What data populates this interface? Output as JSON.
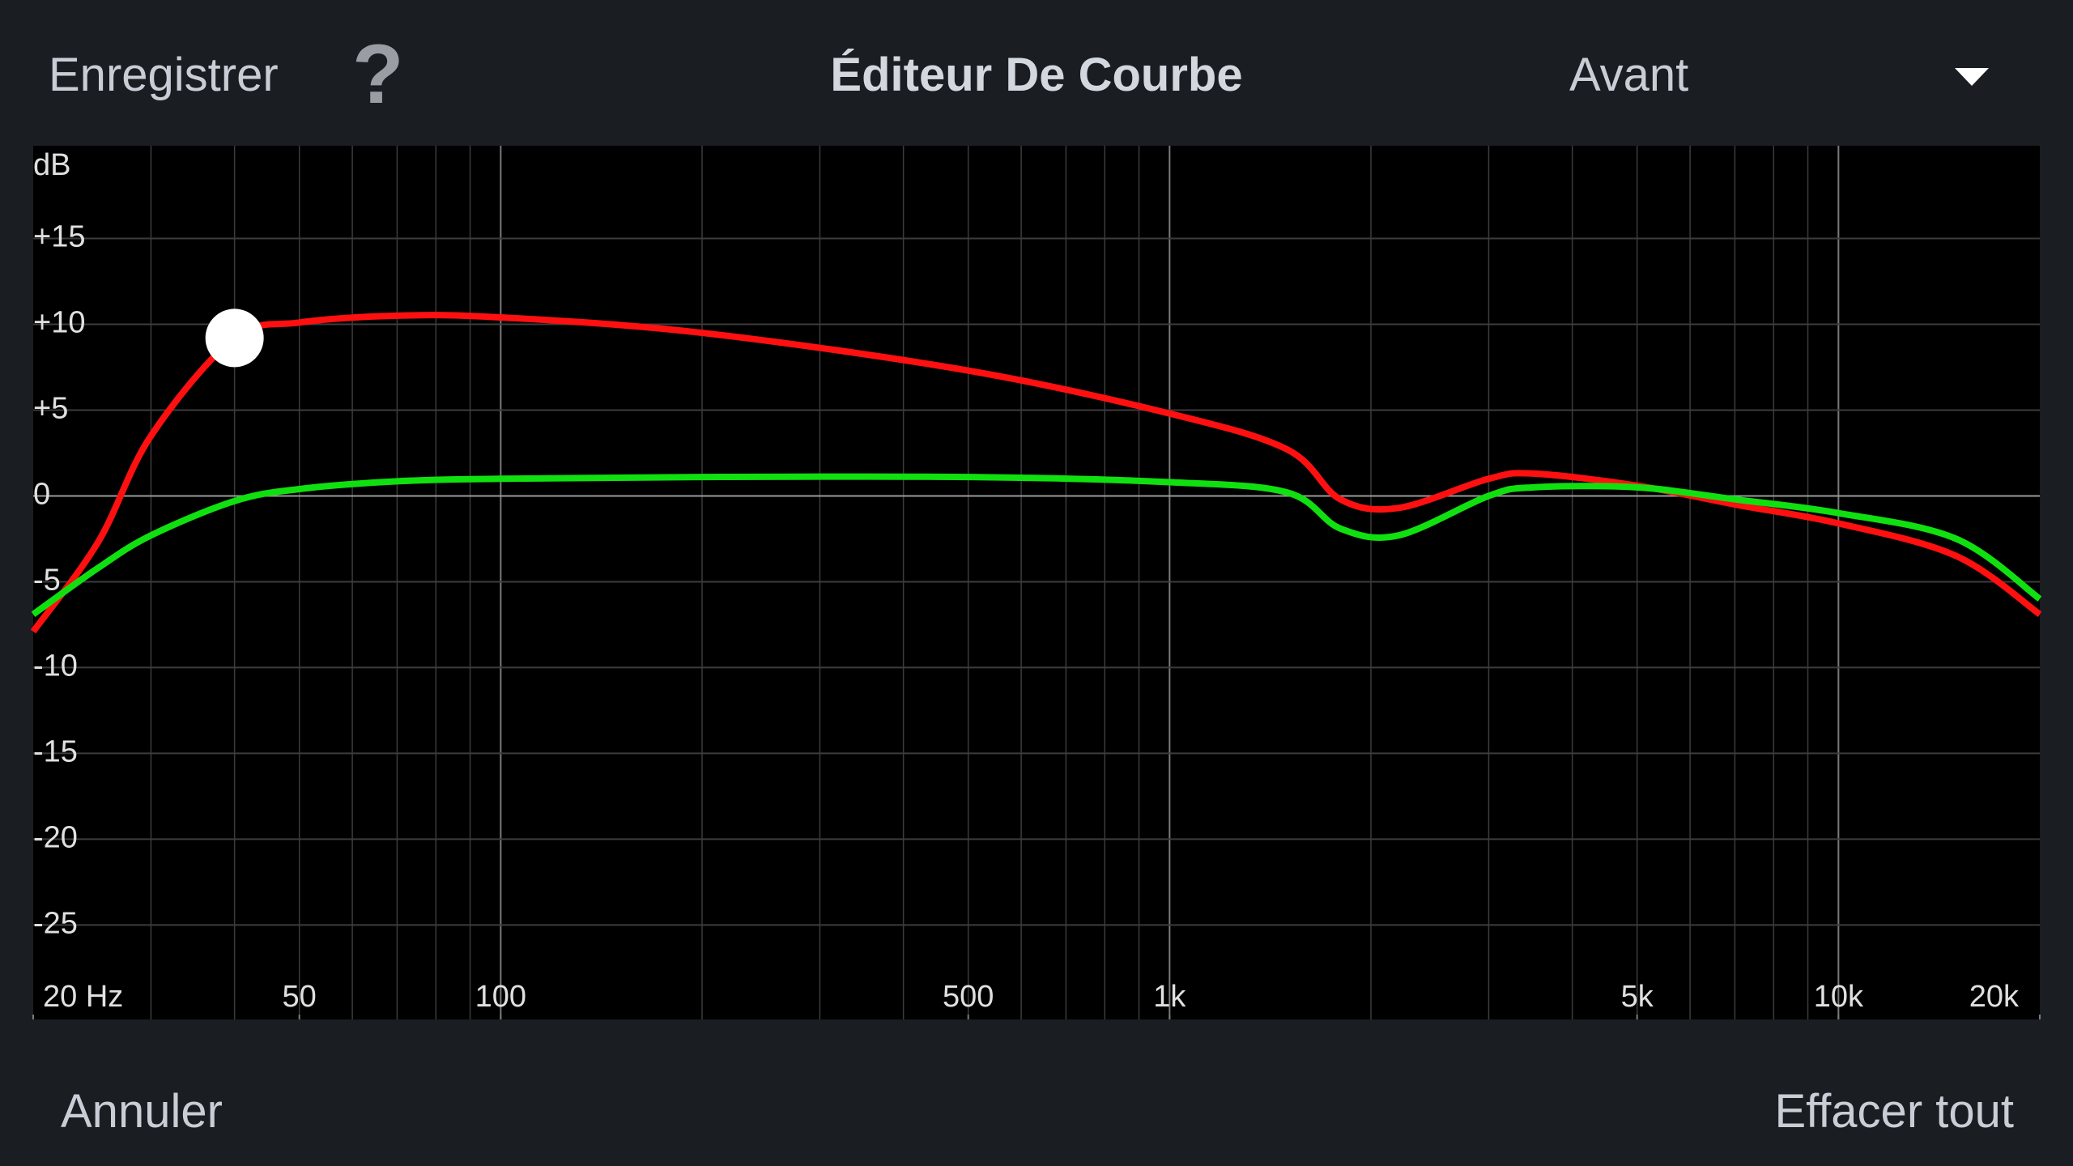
{
  "header": {
    "save": "Enregistrer",
    "help": "?",
    "title": "Éditeur De Courbe",
    "dropdown": "Avant"
  },
  "footer": {
    "cancel": "Annuler",
    "clear": "Effacer tout"
  },
  "chart_data": {
    "type": "line",
    "y_label": "dB",
    "xscale": "log",
    "grid": true,
    "xlim": [
      20,
      20000
    ],
    "ylim": [
      -30.5,
      20.4
    ],
    "xticks": [
      {
        "value": 20,
        "label": "20 Hz"
      },
      50,
      100,
      500,
      {
        "value": 1000,
        "label": "1k"
      },
      {
        "value": 5000,
        "label": "5k"
      },
      {
        "value": 10000,
        "label": "10k"
      },
      {
        "value": 20000,
        "label": "20k"
      }
    ],
    "yticks": [
      {
        "value": 15,
        "label": "+15"
      },
      {
        "value": 10,
        "label": "+10"
      },
      {
        "value": 5,
        "label": "+5"
      },
      0,
      -5,
      -10,
      -15,
      -20,
      -25
    ],
    "x": [
      20,
      25,
      30,
      40,
      50,
      70,
      100,
      200,
      500,
      1000,
      1500,
      1800,
      2200,
      3000,
      3500,
      5000,
      7000,
      10000,
      15000,
      20000
    ],
    "series": [
      {
        "color": "#ff1010",
        "values": [
          -7.9,
          -2.7,
          3.5,
          9.2,
          10.1,
          10.5,
          10.4,
          9.5,
          7.3,
          4.8,
          2.7,
          -0.2,
          -0.7,
          1.0,
          1.3,
          0.6,
          -0.5,
          -1.6,
          -3.5,
          -6.9
        ]
      },
      {
        "color": "#10e010",
        "values": [
          -6.9,
          -4.2,
          -2.3,
          -0.3,
          0.4,
          0.85,
          1.0,
          1.1,
          1.1,
          0.8,
          0.2,
          -1.9,
          -2.3,
          0.0,
          0.5,
          0.5,
          -0.2,
          -1.0,
          -2.5,
          -6.0
        ]
      }
    ],
    "points": [
      {
        "x": 40,
        "y": 9.2
      }
    ]
  }
}
